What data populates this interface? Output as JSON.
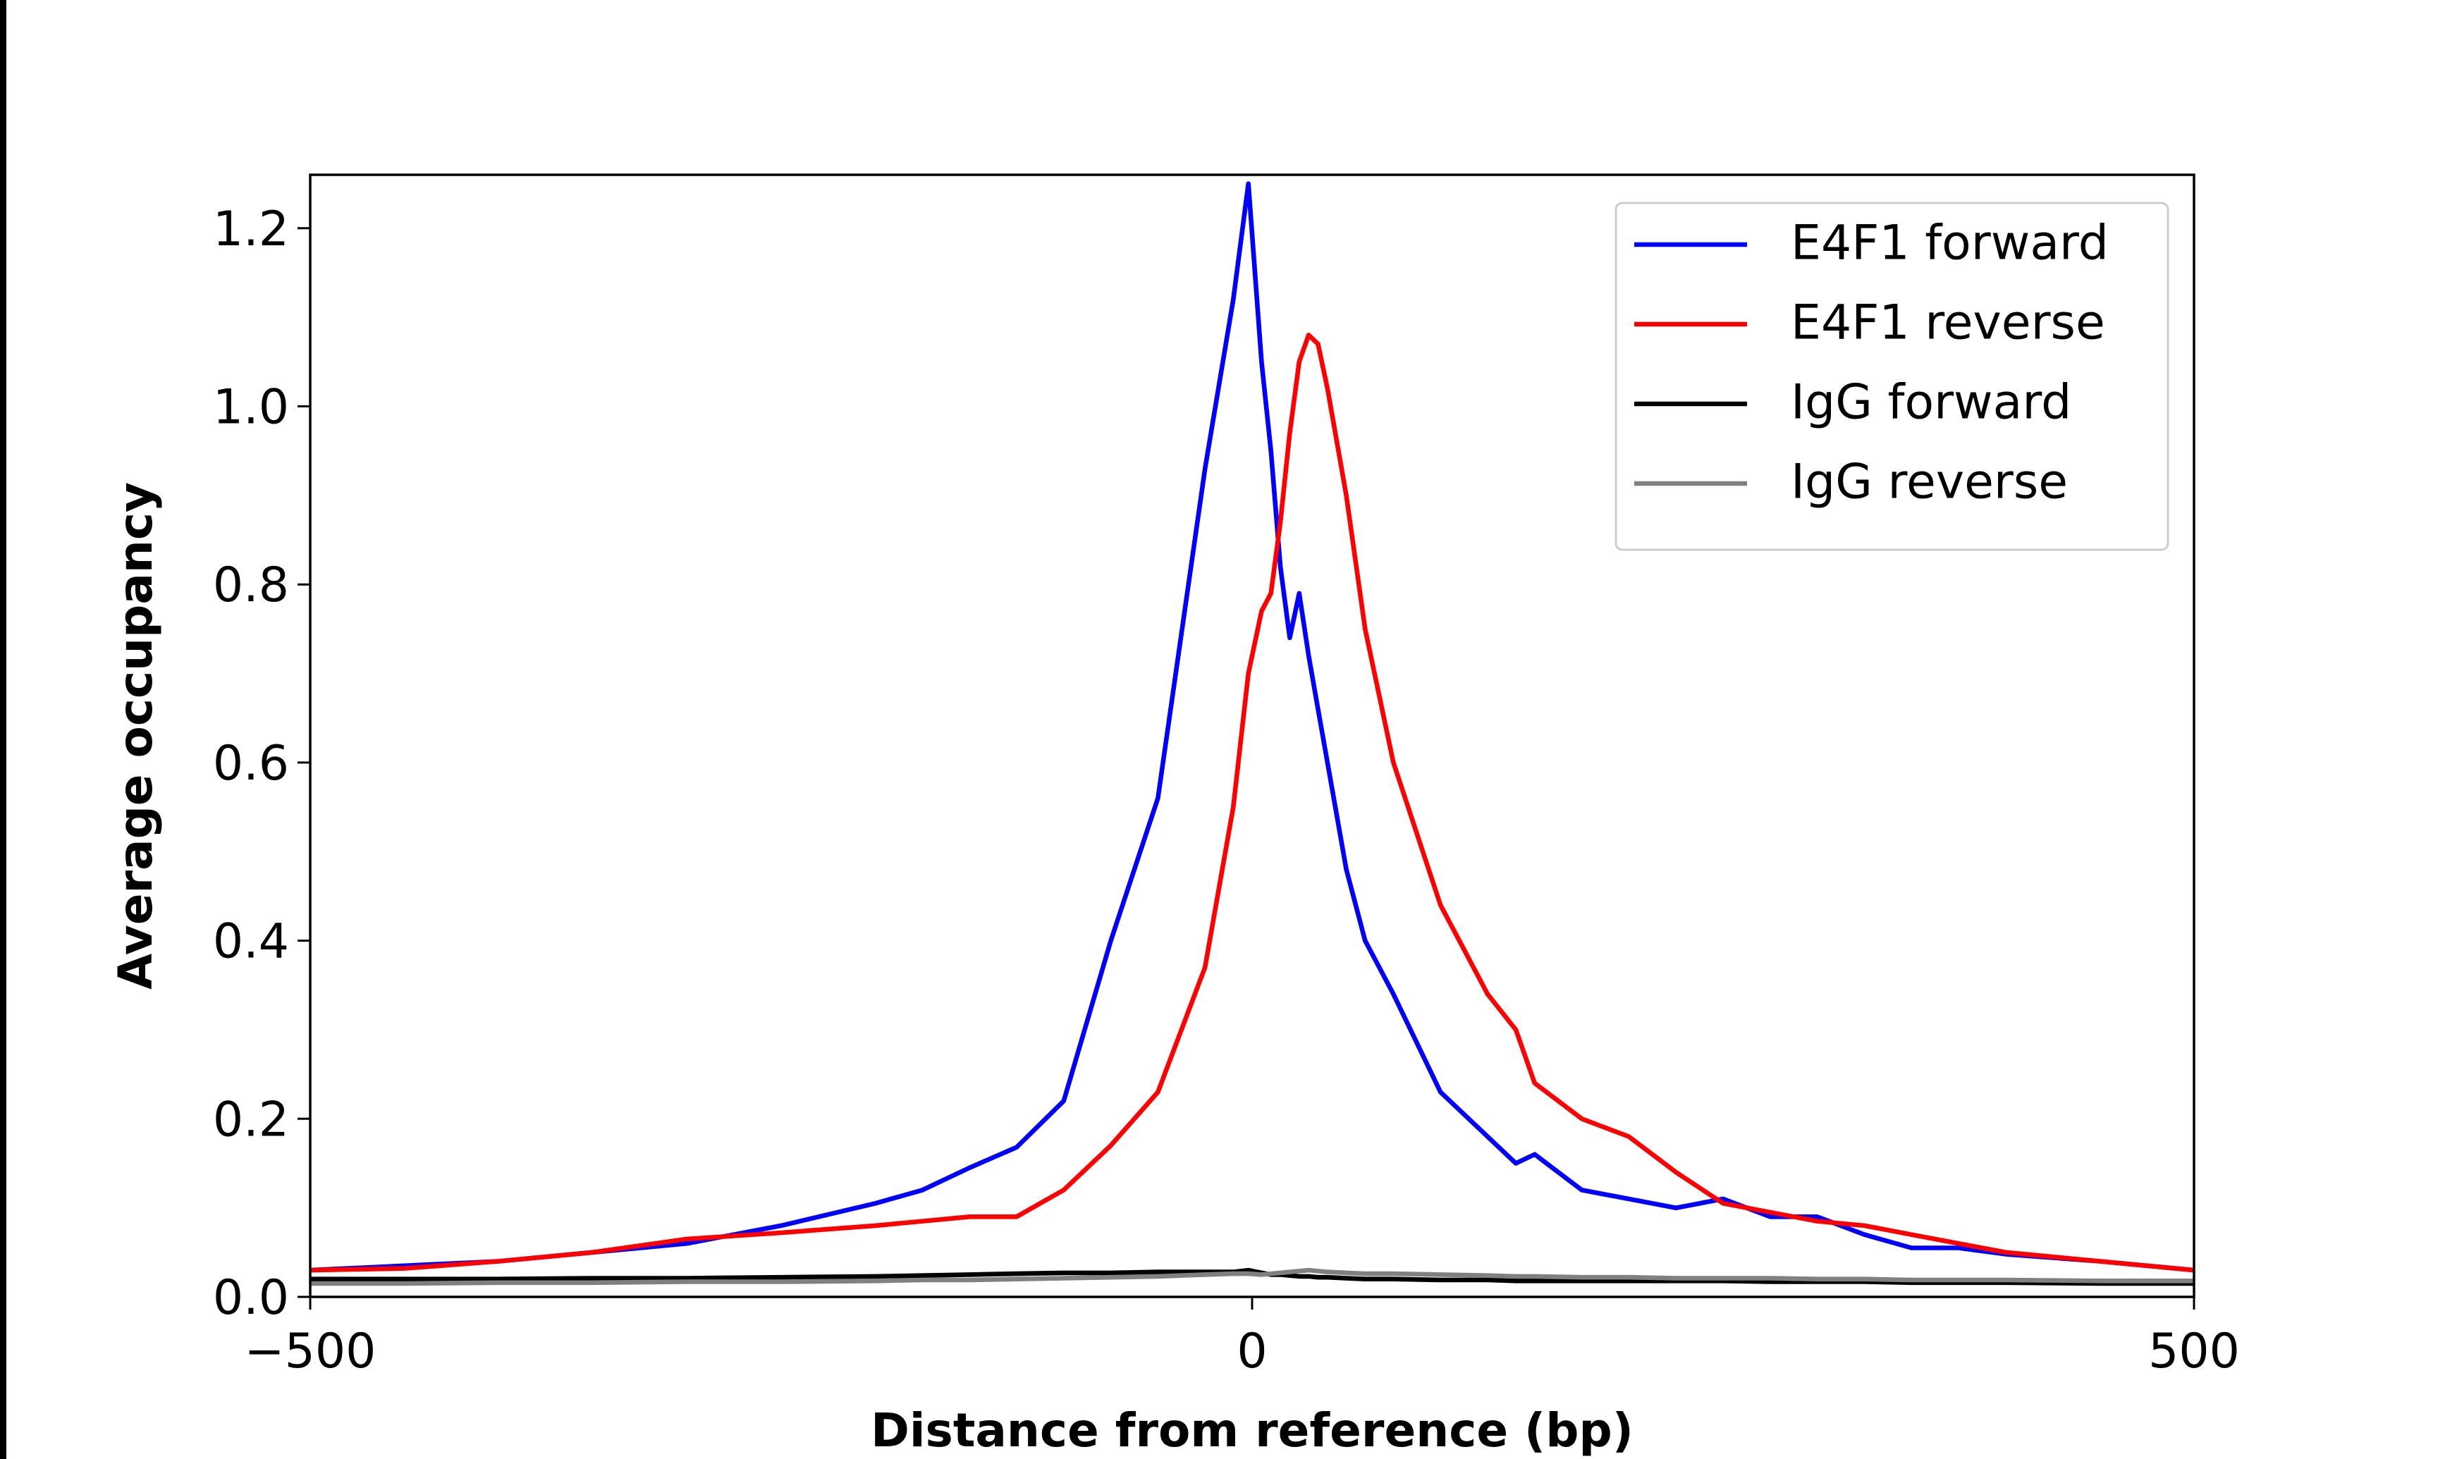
{
  "chart_data": {
    "type": "line",
    "xlabel": "Distance from reference (bp)",
    "ylabel": "Average occupancy",
    "x": [
      -500,
      -450,
      -400,
      -350,
      -300,
      -250,
      -200,
      -175,
      -150,
      -125,
      -100,
      -75,
      -50,
      -25,
      -10,
      -2,
      5,
      10,
      15,
      20,
      25,
      30,
      35,
      40,
      50,
      60,
      75,
      100,
      125,
      140,
      150,
      175,
      200,
      225,
      250,
      275,
      300,
      325,
      350,
      375,
      400,
      450,
      500
    ],
    "series": [
      {
        "name": "E4F1 forward",
        "color": "#0000ff",
        "values": [
          0.03,
          0.035,
          0.04,
          0.05,
          0.06,
          0.08,
          0.105,
          0.12,
          0.145,
          0.168,
          0.22,
          0.4,
          0.56,
          0.93,
          1.12,
          1.25,
          1.05,
          0.95,
          0.82,
          0.74,
          0.79,
          0.72,
          0.66,
          0.6,
          0.48,
          0.4,
          0.34,
          0.23,
          0.18,
          0.15,
          0.16,
          0.12,
          0.11,
          0.1,
          0.11,
          0.09,
          0.09,
          0.07,
          0.055,
          0.055,
          0.048,
          0.04,
          0.03
        ]
      },
      {
        "name": "E4F1 reverse",
        "color": "#ff0000",
        "values": [
          0.03,
          0.032,
          0.04,
          0.05,
          0.065,
          0.072,
          0.08,
          0.085,
          0.09,
          0.09,
          0.12,
          0.17,
          0.23,
          0.37,
          0.55,
          0.7,
          0.77,
          0.79,
          0.87,
          0.97,
          1.05,
          1.08,
          1.07,
          1.02,
          0.9,
          0.75,
          0.6,
          0.44,
          0.34,
          0.3,
          0.24,
          0.2,
          0.18,
          0.14,
          0.105,
          0.095,
          0.085,
          0.08,
          0.07,
          0.06,
          0.05,
          0.04,
          0.03
        ]
      },
      {
        "name": "IgG forward",
        "color": "#000000",
        "values": [
          0.02,
          0.02,
          0.02,
          0.021,
          0.021,
          0.022,
          0.023,
          0.024,
          0.025,
          0.026,
          0.027,
          0.027,
          0.028,
          0.028,
          0.028,
          0.03,
          0.027,
          0.025,
          0.025,
          0.024,
          0.023,
          0.023,
          0.022,
          0.022,
          0.021,
          0.02,
          0.02,
          0.019,
          0.019,
          0.018,
          0.018,
          0.018,
          0.018,
          0.018,
          0.018,
          0.017,
          0.017,
          0.017,
          0.016,
          0.016,
          0.016,
          0.015,
          0.015
        ]
      },
      {
        "name": "IgG reverse",
        "color": "#808080",
        "values": [
          0.015,
          0.015,
          0.016,
          0.016,
          0.017,
          0.017,
          0.018,
          0.019,
          0.019,
          0.02,
          0.021,
          0.022,
          0.023,
          0.025,
          0.026,
          0.026,
          0.025,
          0.026,
          0.027,
          0.028,
          0.029,
          0.03,
          0.029,
          0.028,
          0.027,
          0.026,
          0.026,
          0.025,
          0.024,
          0.023,
          0.023,
          0.022,
          0.022,
          0.021,
          0.021,
          0.021,
          0.02,
          0.02,
          0.019,
          0.019,
          0.019,
          0.018,
          0.018
        ]
      }
    ],
    "xlim": [
      -500,
      500
    ],
    "xticks": [
      {
        "value": -500,
        "label": "−500"
      },
      0,
      500
    ],
    "ylim": [
      0,
      1.26
    ],
    "yticks": [
      {
        "value": 0,
        "label": "0.0"
      },
      0.2,
      0.4,
      0.6,
      0.8,
      {
        "value": 1,
        "label": "1.0"
      },
      1.2
    ],
    "legend": "upper right",
    "grid": false
  }
}
